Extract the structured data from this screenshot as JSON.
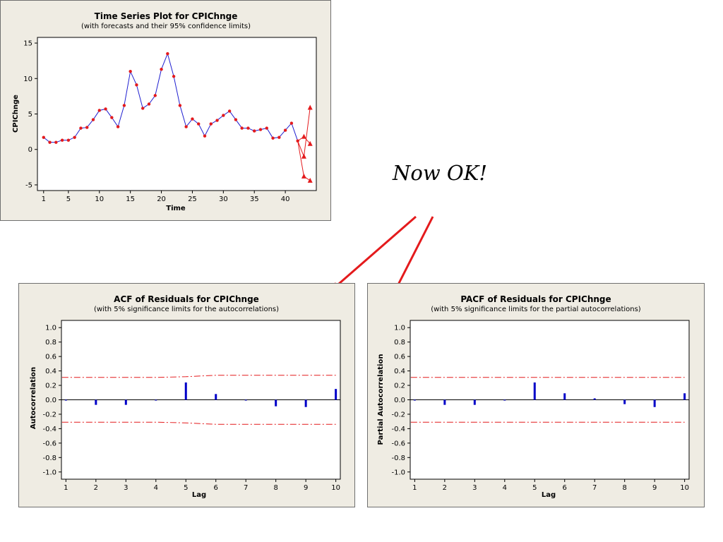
{
  "annotation": {
    "text": "Now OK!"
  },
  "colors": {
    "panel_bg": "#efece3",
    "series": "#1f1fd0",
    "marker": "#e41a1c",
    "limit": "#e41a1c",
    "bar": "#0000c8",
    "arrow": "#e41a1c"
  },
  "chart_data": [
    {
      "id": "ts",
      "type": "line",
      "title": "Time Series Plot for CPIChnge",
      "subtitle": "(with forecasts and their 95% confidence limits)",
      "xlabel": "Time",
      "ylabel": "CPIChnge",
      "xlim": [
        1,
        44
      ],
      "ylim": [
        -5,
        15
      ],
      "xticks": [
        1,
        5,
        10,
        15,
        20,
        25,
        30,
        35,
        40
      ],
      "yticks": [
        -5,
        0,
        5,
        10,
        15
      ],
      "x": [
        1,
        2,
        3,
        4,
        5,
        6,
        7,
        8,
        9,
        10,
        11,
        12,
        13,
        14,
        15,
        16,
        17,
        18,
        19,
        20,
        21,
        22,
        23,
        24,
        25,
        26,
        27,
        28,
        29,
        30,
        31,
        32,
        33,
        34,
        35,
        36,
        37,
        38,
        39,
        40,
        41,
        42
      ],
      "values": [
        1.7,
        1.0,
        1.0,
        1.3,
        1.3,
        1.7,
        3.0,
        3.1,
        4.2,
        5.5,
        5.7,
        4.5,
        3.2,
        6.2,
        11.0,
        9.1,
        5.8,
        6.4,
        7.6,
        11.3,
        13.5,
        10.3,
        6.2,
        3.2,
        4.3,
        3.6,
        1.9,
        3.6,
        4.1,
        4.8,
        5.4,
        4.2,
        3.0,
        3.0,
        2.6,
        2.8,
        3.0,
        1.6,
        1.7,
        2.7,
        3.7,
        1.2
      ],
      "forecasts": {
        "x": [
          43,
          44
        ],
        "forecast": [
          1.8,
          0.8
        ],
        "lower": [
          -3.8,
          -4.4
        ],
        "upper": [
          -1.0,
          5.9
        ]
      },
      "grid": false
    },
    {
      "id": "acf",
      "type": "bar",
      "title": "ACF of Residuals for CPIChnge",
      "subtitle": "(with 5% significance limits for the autocorrelations)",
      "xlabel": "Lag",
      "ylabel": "Autocorrelation",
      "categories": [
        1,
        2,
        3,
        4,
        5,
        6,
        7,
        8,
        9,
        10
      ],
      "values": [
        -0.01,
        -0.07,
        -0.07,
        -0.01,
        0.24,
        0.08,
        -0.01,
        -0.09,
        -0.1,
        0.15
      ],
      "upper_limit": [
        0.31,
        0.31,
        0.31,
        0.31,
        0.32,
        0.34,
        0.34,
        0.34,
        0.34,
        0.34
      ],
      "lower_limit": [
        -0.31,
        -0.31,
        -0.31,
        -0.31,
        -0.32,
        -0.34,
        -0.34,
        -0.34,
        -0.34,
        -0.34
      ],
      "ylim": [
        -1.0,
        1.0
      ],
      "yticks": [
        "1.0",
        "0.8",
        "0.6",
        "0.4",
        "0.2",
        "0.0",
        "-0.2",
        "-0.4",
        "-0.6",
        "-0.8",
        "-1.0"
      ],
      "grid": false
    },
    {
      "id": "pacf",
      "type": "bar",
      "title": "PACF of Residuals for CPIChnge",
      "subtitle": "(with 5% significance limits for the partial autocorrelations)",
      "xlabel": "Lag",
      "ylabel": "Partial Autocorrelation",
      "categories": [
        1,
        2,
        3,
        4,
        5,
        6,
        7,
        8,
        9,
        10
      ],
      "values": [
        -0.01,
        -0.07,
        -0.07,
        -0.01,
        0.24,
        0.09,
        0.02,
        -0.06,
        -0.1,
        0.09
      ],
      "upper_limit": [
        0.31,
        0.31,
        0.31,
        0.31,
        0.31,
        0.31,
        0.31,
        0.31,
        0.31,
        0.31
      ],
      "lower_limit": [
        -0.31,
        -0.31,
        -0.31,
        -0.31,
        -0.31,
        -0.31,
        -0.31,
        -0.31,
        -0.31,
        -0.31
      ],
      "ylim": [
        -1.0,
        1.0
      ],
      "yticks": [
        "1.0",
        "0.8",
        "0.6",
        "0.4",
        "0.2",
        "0.0",
        "-0.2",
        "-0.4",
        "-0.6",
        "-0.8",
        "-1.0"
      ],
      "grid": false
    }
  ]
}
